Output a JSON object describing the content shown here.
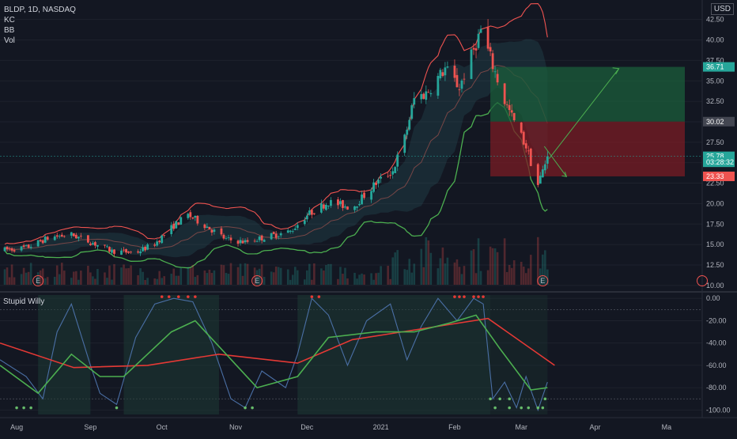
{
  "header": {
    "symbol_line": "BLDP, 1D, NASDAQ",
    "indicators": [
      "KC",
      "BB",
      "Vol"
    ],
    "currency": "USD"
  },
  "oscillator": {
    "title": "Stupid Willy"
  },
  "colors": {
    "background": "#131722",
    "up": "#26a69a",
    "down": "#ef5350",
    "band_upper": "#ef5350",
    "band_lower": "#4caf50",
    "osc_line": "#4a6fa5",
    "osc_slow": "#4caf50",
    "osc_red": "#e53935",
    "profit_zone": "#1b5e3b",
    "loss_zone": "#7a1c24"
  },
  "chart_data": [
    {
      "type": "candlestick",
      "ylim": [
        9.5,
        44.5
      ],
      "y_ticks": [
        "42.50",
        "40.00",
        "37.50",
        "35.00",
        "32.50",
        "30.00",
        "27.50",
        "25.00",
        "22.50",
        "20.00",
        "17.50",
        "15.00",
        "12.50",
        "10.00"
      ],
      "price_labels": [
        {
          "label": "36.71",
          "value": 36.71,
          "color": "#26a69a"
        },
        {
          "label": "30.02",
          "value": 30.02,
          "color": "#434651"
        },
        {
          "label": "25.78",
          "value": 25.78,
          "color": "#26a69a"
        },
        {
          "label": "03:28:32",
          "value": 25.05,
          "color": "#26a69a"
        },
        {
          "label": "23.33",
          "value": 23.33,
          "color": "#ef5350"
        }
      ],
      "x_ticks": [
        "Aug",
        "Sep",
        "Oct",
        "Nov",
        "Dec",
        "2021",
        "Feb",
        "Mar",
        "Apr",
        "Ma"
      ],
      "earnings_markers": [
        "E",
        "E",
        "E"
      ],
      "position": {
        "entry": 30.02,
        "target": 36.71,
        "stop": 23.33
      },
      "arrow": {
        "from": 25.5,
        "to": 36.5
      },
      "arrow_down_to": 23.3,
      "close": 25.78,
      "anchors": [
        {
          "x": "2020-07-25",
          "price": 14.3
        },
        {
          "x": "2020-08-05",
          "price": 14.6
        },
        {
          "x": "2020-08-15",
          "price": 15.9
        },
        {
          "x": "2020-08-24",
          "price": 16.2
        },
        {
          "x": "2020-09-01",
          "price": 15.3
        },
        {
          "x": "2020-09-10",
          "price": 14.2
        },
        {
          "x": "2020-09-20",
          "price": 14.0
        },
        {
          "x": "2020-09-28",
          "price": 15.1
        },
        {
          "x": "2020-10-06",
          "price": 17.3
        },
        {
          "x": "2020-10-12",
          "price": 18.6
        },
        {
          "x": "2020-10-20",
          "price": 17.2
        },
        {
          "x": "2020-10-28",
          "price": 15.6
        },
        {
          "x": "2020-11-05",
          "price": 15.3
        },
        {
          "x": "2020-11-15",
          "price": 16.0
        },
        {
          "x": "2020-11-24",
          "price": 16.6
        },
        {
          "x": "2020-12-01",
          "price": 18.6
        },
        {
          "x": "2020-12-10",
          "price": 20.2
        },
        {
          "x": "2020-12-20",
          "price": 19.5
        },
        {
          "x": "2020-12-30",
          "price": 22.5
        },
        {
          "x": "2021-01-06",
          "price": 24.0
        },
        {
          "x": "2021-01-11",
          "price": 28.0
        },
        {
          "x": "2021-01-15",
          "price": 32.8
        },
        {
          "x": "2021-01-20",
          "price": 33.5
        },
        {
          "x": "2021-01-28",
          "price": 36.5
        },
        {
          "x": "2021-02-03",
          "price": 34.2
        },
        {
          "x": "2021-02-08",
          "price": 38.0
        },
        {
          "x": "2021-02-12",
          "price": 41.2
        },
        {
          "x": "2021-02-16",
          "price": 37.8
        },
        {
          "x": "2021-02-22",
          "price": 32.5
        },
        {
          "x": "2021-02-26",
          "price": 30.0
        },
        {
          "x": "2021-03-03",
          "price": 27.0
        },
        {
          "x": "2021-03-08",
          "price": 22.3
        },
        {
          "x": "2021-03-12",
          "price": 25.8
        }
      ]
    },
    {
      "type": "line",
      "title": "Stupid Willy",
      "ylim": [
        -104,
        3
      ],
      "y_ticks": [
        "0.00",
        "-20.00",
        "-40.00",
        "-60.00",
        "-80.00",
        "-100.00"
      ],
      "fast": [
        {
          "x": "2020-07-25",
          "y": -55
        },
        {
          "x": "2020-08-05",
          "y": -70
        },
        {
          "x": "2020-08-12",
          "y": -90
        },
        {
          "x": "2020-08-18",
          "y": -30
        },
        {
          "x": "2020-08-24",
          "y": -5
        },
        {
          "x": "2020-09-01",
          "y": -60
        },
        {
          "x": "2020-09-05",
          "y": -85
        },
        {
          "x": "2020-09-12",
          "y": -95
        },
        {
          "x": "2020-09-20",
          "y": -35
        },
        {
          "x": "2020-09-28",
          "y": -5
        },
        {
          "x": "2020-10-06",
          "y": 0
        },
        {
          "x": "2020-10-14",
          "y": -3
        },
        {
          "x": "2020-10-22",
          "y": -40
        },
        {
          "x": "2020-10-30",
          "y": -90
        },
        {
          "x": "2020-11-05",
          "y": -98
        },
        {
          "x": "2020-11-12",
          "y": -65
        },
        {
          "x": "2020-11-22",
          "y": -80
        },
        {
          "x": "2020-11-27",
          "y": -50
        },
        {
          "x": "2020-12-03",
          "y": 0
        },
        {
          "x": "2020-12-10",
          "y": -15
        },
        {
          "x": "2020-12-18",
          "y": -60
        },
        {
          "x": "2020-12-26",
          "y": -20
        },
        {
          "x": "2021-01-05",
          "y": -5
        },
        {
          "x": "2021-01-12",
          "y": -55
        },
        {
          "x": "2021-01-18",
          "y": -25
        },
        {
          "x": "2021-01-25",
          "y": 0
        },
        {
          "x": "2021-02-02",
          "y": -20
        },
        {
          "x": "2021-02-09",
          "y": 0
        },
        {
          "x": "2021-02-13",
          "y": -5
        },
        {
          "x": "2021-02-17",
          "y": -90
        },
        {
          "x": "2021-02-22",
          "y": -75
        },
        {
          "x": "2021-02-27",
          "y": -98
        },
        {
          "x": "2021-03-03",
          "y": -70
        },
        {
          "x": "2021-03-08",
          "y": -100
        },
        {
          "x": "2021-03-12",
          "y": -75
        }
      ],
      "slow": [
        {
          "x": "2020-07-25",
          "y": -60
        },
        {
          "x": "2020-08-10",
          "y": -85
        },
        {
          "x": "2020-08-24",
          "y": -50
        },
        {
          "x": "2020-09-05",
          "y": -70
        },
        {
          "x": "2020-09-15",
          "y": -70
        },
        {
          "x": "2020-10-05",
          "y": -30
        },
        {
          "x": "2020-10-15",
          "y": -20
        },
        {
          "x": "2020-10-28",
          "y": -50
        },
        {
          "x": "2020-11-10",
          "y": -80
        },
        {
          "x": "2020-11-27",
          "y": -70
        },
        {
          "x": "2020-12-10",
          "y": -35
        },
        {
          "x": "2020-12-30",
          "y": -30
        },
        {
          "x": "2021-01-15",
          "y": -30
        },
        {
          "x": "2021-01-30",
          "y": -22
        },
        {
          "x": "2021-02-10",
          "y": -15
        },
        {
          "x": "2021-02-20",
          "y": -45
        },
        {
          "x": "2021-03-05",
          "y": -82
        },
        {
          "x": "2021-03-12",
          "y": -80
        }
      ],
      "slow_red": [
        {
          "x": "2020-07-25",
          "y": -40
        },
        {
          "x": "2020-08-25",
          "y": -62
        },
        {
          "x": "2020-09-25",
          "y": -60
        },
        {
          "x": "2020-10-25",
          "y": -50
        },
        {
          "x": "2020-11-27",
          "y": -58
        },
        {
          "x": "2020-12-20",
          "y": -37
        },
        {
          "x": "2021-01-25",
          "y": -25
        },
        {
          "x": "2021-02-15",
          "y": -18
        },
        {
          "x": "2021-03-15",
          "y": -60
        }
      ]
    }
  ]
}
